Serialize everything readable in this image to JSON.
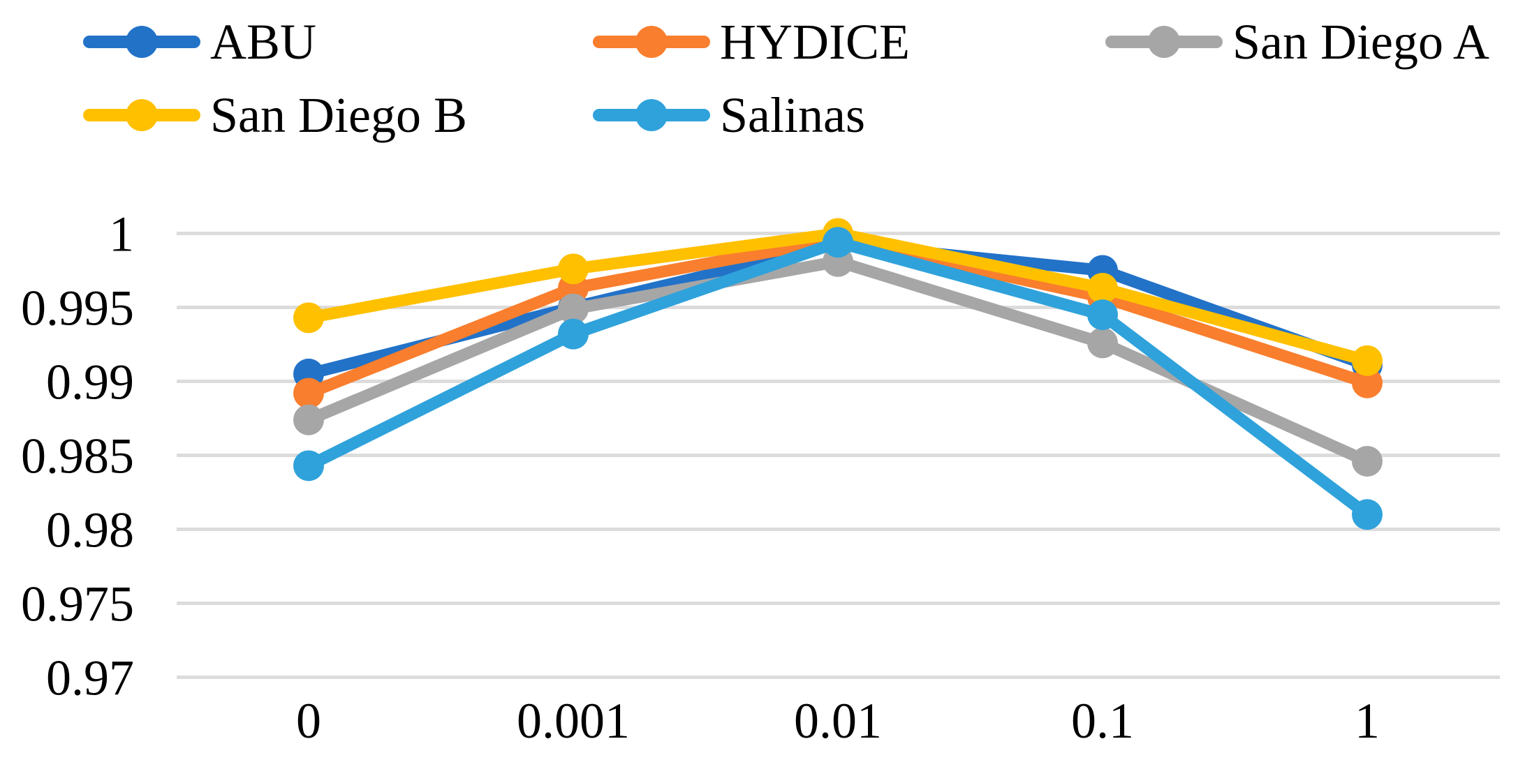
{
  "chart_data": {
    "type": "line",
    "title": "",
    "xlabel": "",
    "ylabel": "",
    "categories": [
      "0",
      "0.001",
      "0.01",
      "0.1",
      "1"
    ],
    "series": [
      {
        "name": "ABU",
        "color": "#2272C8",
        "values": [
          0.9905,
          0.995,
          0.9993,
          0.9975,
          0.9911
        ]
      },
      {
        "name": "HYDICE",
        "color": "#F97E2D",
        "values": [
          0.9892,
          0.9963,
          0.9996,
          0.9957,
          0.9899
        ]
      },
      {
        "name": "San Diego A",
        "color": "#A6A6A6",
        "values": [
          0.9874,
          0.9949,
          0.9981,
          0.9926,
          0.9846
        ]
      },
      {
        "name": "San Diego B",
        "color": "#FFC000",
        "values": [
          0.9943,
          0.9976,
          1.0,
          0.9963,
          0.9914
        ]
      },
      {
        "name": "Salinas",
        "color": "#2FA2DB",
        "values": [
          0.9843,
          0.9932,
          0.9994,
          0.9945,
          0.981
        ]
      }
    ],
    "y_ticks": [
      {
        "label": "1",
        "value": 1.0
      },
      {
        "label": "0.995",
        "value": 0.995
      },
      {
        "label": "0.99",
        "value": 0.99
      },
      {
        "label": "0.985",
        "value": 0.985
      },
      {
        "label": "0.98",
        "value": 0.98
      },
      {
        "label": "0.975",
        "value": 0.975
      },
      {
        "label": "0.97",
        "value": 0.97
      }
    ],
    "ylim": [
      0.97,
      1.0
    ],
    "grid": "horizontal",
    "legend_position": "top",
    "gridline_color": "#DCDCDC",
    "text_color": "#000000",
    "background_color": "#FFFFFF"
  }
}
